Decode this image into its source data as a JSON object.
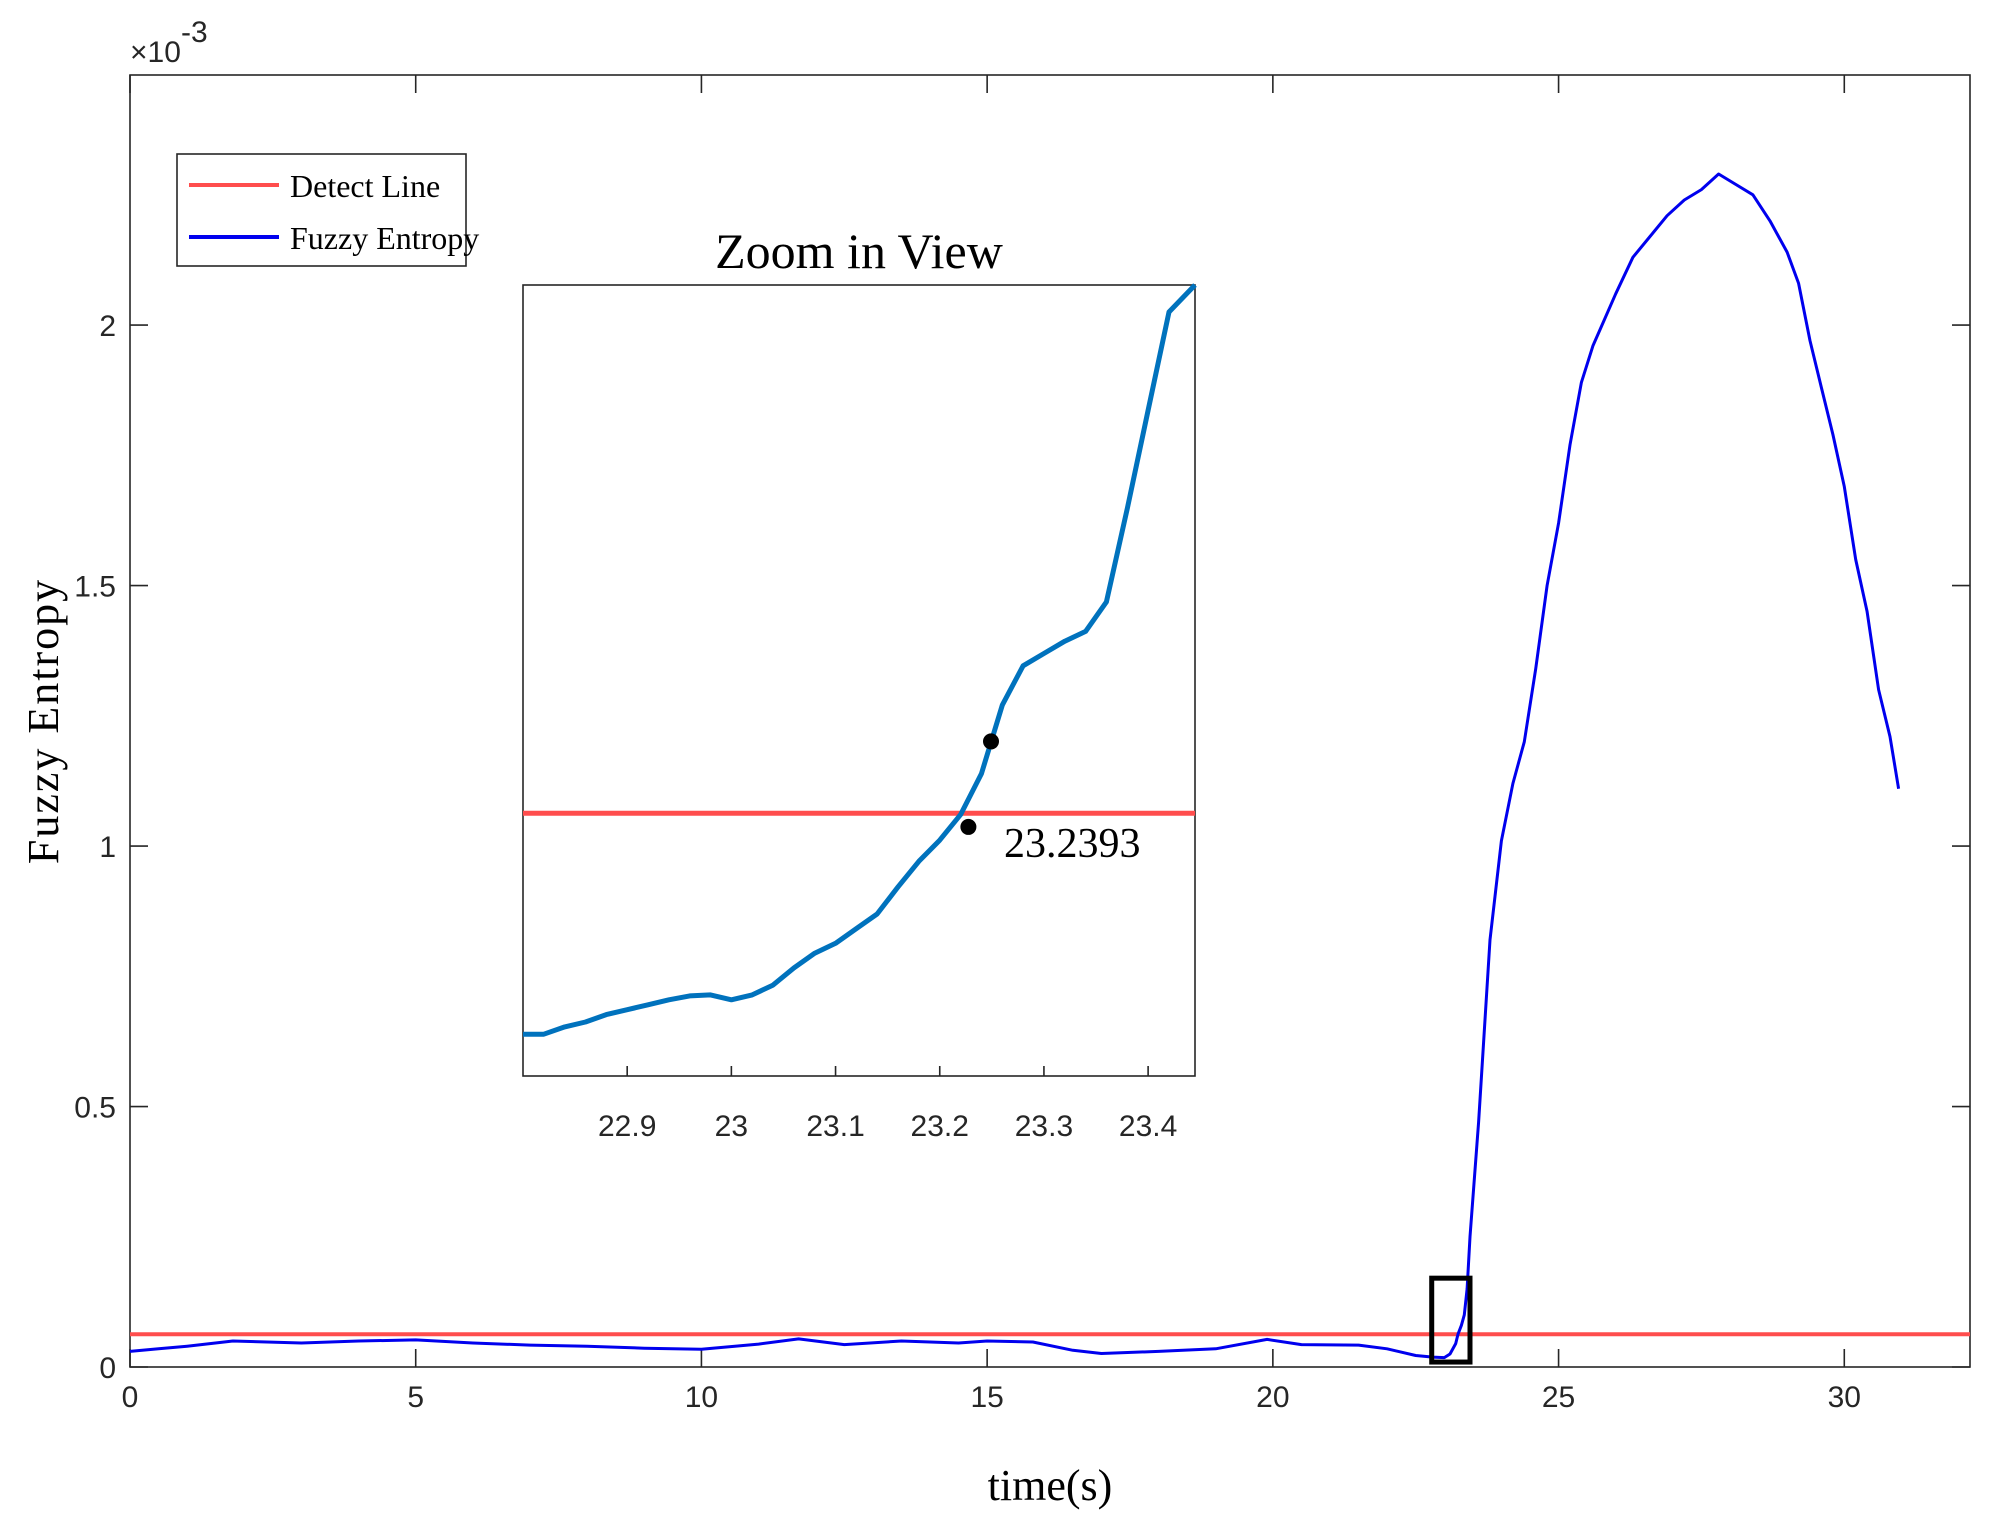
{
  "chart_data": [
    {
      "type": "line",
      "xlabel": "time(s)",
      "ylabel": "Fuzzy Entropy",
      "exponent_label": "×10",
      "exponent_power": "-3",
      "xlim": [
        0,
        32.2
      ],
      "ylim": [
        0,
        0.00248
      ],
      "xticks": [
        0,
        5,
        10,
        15,
        20,
        25,
        30
      ],
      "xtick_labels": [
        "0",
        "5",
        "10",
        "15",
        "20",
        "25",
        "30"
      ],
      "yticks": [
        0,
        0.0005,
        0.001,
        0.0015,
        0.002
      ],
      "ytick_labels": [
        "0",
        "0.5",
        "1",
        "1.5",
        "2"
      ],
      "grid": false,
      "legend_position": "top-left",
      "legend": [
        {
          "label": "Detect Line",
          "color": "#ff4d4d"
        },
        {
          "label": "Fuzzy Entropy",
          "color": "#0000ee"
        }
      ],
      "series": [
        {
          "name": "Detect Line",
          "color": "#ff4d4d",
          "x": [
            0,
            32.2
          ],
          "y": [
            6.3e-05,
            6.3e-05
          ]
        },
        {
          "name": "Fuzzy Entropy",
          "color": "#0000ee",
          "x": [
            0,
            0.5,
            1,
            1.8,
            3,
            4,
            5,
            6,
            7,
            8,
            9,
            10,
            11,
            11.7,
            12.5,
            13.5,
            14.5,
            15,
            15.8,
            16.5,
            17,
            18,
            19,
            19.9,
            20.5,
            21.5,
            22,
            22.5,
            22.8,
            23.0,
            23.1,
            23.2,
            23.24,
            23.3,
            23.35,
            23.4,
            23.45,
            23.6,
            23.8,
            24.0,
            24.2,
            24.4,
            24.6,
            24.8,
            25.0,
            25.2,
            25.4,
            25.6,
            25.8,
            26.0,
            26.3,
            26.6,
            26.9,
            27.2,
            27.5,
            27.8,
            28.1,
            28.4,
            28.7,
            29.0,
            29.2,
            29.4,
            29.6,
            29.8,
            30.0,
            30.2,
            30.4,
            30.6,
            30.8,
            30.95
          ],
          "y": [
            3e-05,
            3.5e-05,
            4e-05,
            5e-05,
            4.6e-05,
            5e-05,
            5.2e-05,
            4.6e-05,
            4.2e-05,
            4e-05,
            3.6e-05,
            3.4e-05,
            4.4e-05,
            5.4e-05,
            4.3e-05,
            5e-05,
            4.6e-05,
            5e-05,
            4.8e-05,
            3.2e-05,
            2.6e-05,
            3e-05,
            3.5e-05,
            5.3e-05,
            4.3e-05,
            4.2e-05,
            3.5e-05,
            2.2e-05,
            1.9e-05,
            1.8e-05,
            2.5e-05,
            4.5e-05,
            6.3e-05,
            8e-05,
            0.0001,
            0.00015,
            0.00025,
            0.00047,
            0.00082,
            0.00101,
            0.00112,
            0.0012,
            0.00134,
            0.0015,
            0.00162,
            0.00177,
            0.00189,
            0.00196,
            0.00201,
            0.00206,
            0.00213,
            0.00217,
            0.00221,
            0.00224,
            0.00226,
            0.00229,
            0.00227,
            0.00225,
            0.0022,
            0.00214,
            0.00208,
            0.00197,
            0.00188,
            0.00179,
            0.00169,
            0.00155,
            0.00145,
            0.0013,
            0.00121,
            0.00111
          ]
        }
      ],
      "highlight_box": {
        "x": [
          22.78,
          23.45
        ],
        "y": [
          9.5e-06,
          0.0001705
        ]
      }
    },
    {
      "type": "line",
      "title": "Zoom in View",
      "xlim": [
        22.8,
        23.445
      ],
      "ylim": [
        9.5e-06,
        0.0001705
      ],
      "xticks": [
        22.9,
        23.0,
        23.1,
        23.2,
        23.3,
        23.4
      ],
      "xtick_labels": [
        "22.9",
        "23",
        "23.1",
        "23.2",
        "23.3",
        "23.4"
      ],
      "grid": false,
      "annotation": {
        "text": "23.2393",
        "x": 23.2393,
        "y": 6.3e-05
      },
      "markers": [
        {
          "x": 23.2275,
          "y": 6.02e-05
        },
        {
          "x": 23.2492,
          "y": 7.76e-05
        }
      ],
      "series": [
        {
          "name": "Detect Line",
          "color": "#ff4d4d",
          "x": [
            22.8,
            23.445
          ],
          "y": [
            6.3e-05,
            6.3e-05
          ]
        },
        {
          "name": "Fuzzy Entropy",
          "color": "#0072bd",
          "x": [
            22.8,
            22.82,
            22.84,
            22.86,
            22.88,
            22.9,
            22.92,
            22.94,
            22.96,
            22.98,
            23.0,
            23.02,
            23.04,
            23.06,
            23.08,
            23.1,
            23.12,
            23.14,
            23.16,
            23.18,
            23.2,
            23.22,
            23.24,
            23.26,
            23.28,
            23.3,
            23.32,
            23.34,
            23.36,
            23.38,
            23.4,
            23.42,
            23.445
          ],
          "y": [
            1.8e-05,
            1.8e-05,
            1.95e-05,
            2.05e-05,
            2.2e-05,
            2.3e-05,
            2.4e-05,
            2.5e-05,
            2.58e-05,
            2.6e-05,
            2.5e-05,
            2.6e-05,
            2.8e-05,
            3.15e-05,
            3.45e-05,
            3.65e-05,
            3.95e-05,
            4.25e-05,
            4.8e-05,
            5.32e-05,
            5.75e-05,
            6.27e-05,
            7.1e-05,
            8.5e-05,
            9.3e-05,
            9.55e-05,
            9.8e-05,
            0.0001,
            0.000106,
            0.000125,
            0.000145,
            0.000165,
            0.0001705
          ]
        }
      ]
    }
  ]
}
